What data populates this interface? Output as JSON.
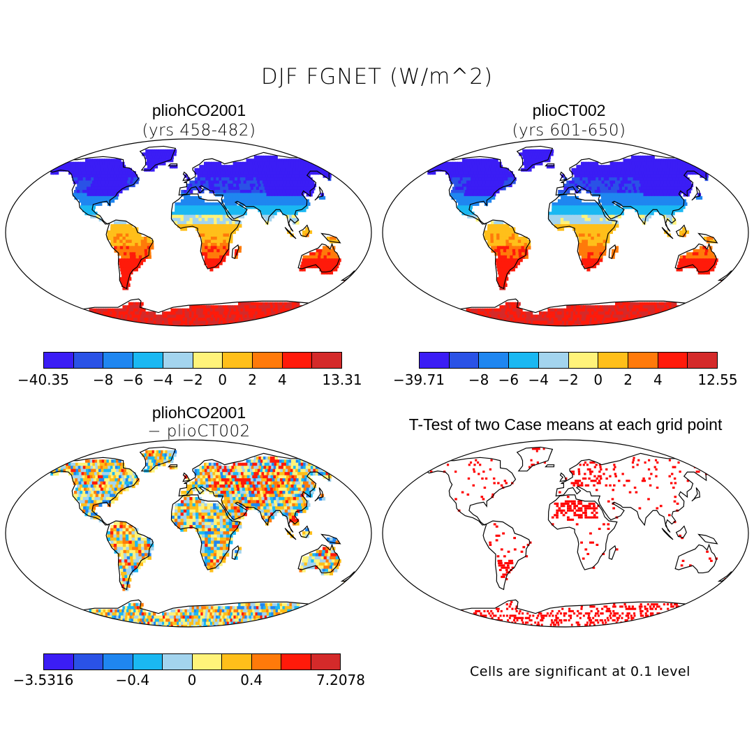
{
  "title": "DJF FGNET (W/m^2)",
  "panels": [
    {
      "title": "pliohCO2001",
      "subtitle": "(yrs 458-482)"
    },
    {
      "title": "plioCT002",
      "subtitle": "(yrs 601-650)"
    },
    {
      "title": "pliohCO2001",
      "subtitle": "− plioCT002"
    },
    {
      "title": "T-Test of two Case means at each grid point"
    }
  ],
  "colorbars": [
    {
      "colors": [
        "#3b1df5",
        "#2a52e6",
        "#1f86f0",
        "#1ab8f2",
        "#a3d4ee",
        "#fff37a",
        "#ffbf1a",
        "#ff7a0a",
        "#ff1a0a",
        "#d42a2a"
      ],
      "labels": [
        "−40.35",
        "−8",
        "−6",
        "−4",
        "−2",
        "0",
        "2",
        "4",
        "13.31"
      ]
    },
    {
      "colors": [
        "#3b1df5",
        "#2a52e6",
        "#1f86f0",
        "#1ab8f2",
        "#a3d4ee",
        "#fff37a",
        "#ffbf1a",
        "#ff7a0a",
        "#ff1a0a",
        "#d42a2a"
      ],
      "labels": [
        "−39.71",
        "−8",
        "−6",
        "−4",
        "−2",
        "0",
        "2",
        "4",
        "12.55"
      ]
    },
    {
      "colors": [
        "#3b1df5",
        "#2a52e6",
        "#1f86f0",
        "#1ab8f2",
        "#a3d4ee",
        "#fff37a",
        "#ffbf1a",
        "#ff7a0a",
        "#ff1a0a",
        "#d42a2a"
      ],
      "labels": [
        "−3.5316",
        "−0.4",
        "0",
        "0.4",
        "7.2078"
      ]
    }
  ],
  "significance_note": "Cells are significant at 0.1 level",
  "significance_color": "#ff0000"
}
